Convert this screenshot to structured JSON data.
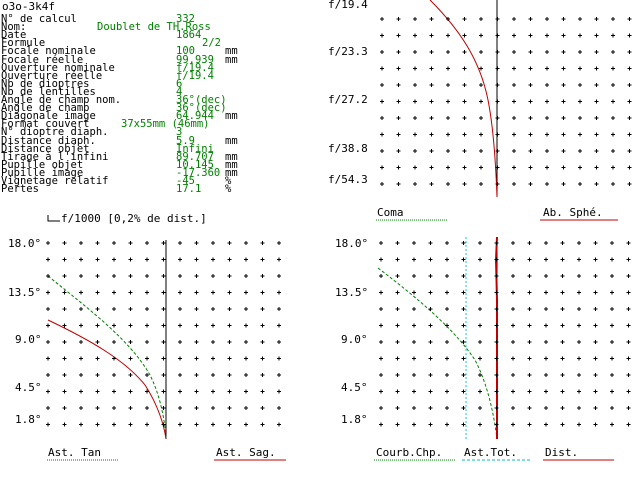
{
  "window": {
    "title": "o3o-3k4f"
  },
  "params": [
    {
      "label": "N° de calcul",
      "value": "332",
      "unit": ""
    },
    {
      "label": "Nom:",
      "value": "Doublet de TH.Ross",
      "unit": "",
      "wide": true
    },
    {
      "label": "Date",
      "value": "1864",
      "unit": ""
    },
    {
      "label": "Formule",
      "value": "2/2",
      "unit": "",
      "offset": 26
    },
    {
      "label": "Focale nominale",
      "value": "100",
      "unit": "mm"
    },
    {
      "label": "Focale réelle",
      "value": "99.939",
      "unit": "mm"
    },
    {
      "label": "Ouverture nominale",
      "value": "f/19.4",
      "unit": ""
    },
    {
      "label": "Ouverture réelle",
      "value": "f/19.4",
      "unit": ""
    },
    {
      "label": "Nb de dioptres",
      "value": "6",
      "unit": ""
    },
    {
      "label": "Nb de lentilles",
      "value": "4",
      "unit": ""
    },
    {
      "label": "Angle de champ nom.",
      "value": "36°(dec)",
      "unit": ""
    },
    {
      "label": "Angle de champ",
      "value": "36°(dec)",
      "unit": ""
    },
    {
      "label": "Diagonale image",
      "value": "64.944",
      "unit": "mm"
    },
    {
      "label": "Format couvert",
      "value": "37x55mm (46mm)",
      "unit": "",
      "mid": true
    },
    {
      "label": "N° dioptre diaph.",
      "value": "3",
      "unit": ""
    },
    {
      "label": "Distance diaph.",
      "value": "5.9",
      "unit": "mm"
    },
    {
      "label": "Distance objet",
      "value": "Infini",
      "unit": ""
    },
    {
      "label": "Tirage à l'infini",
      "value": "89.707",
      "unit": "mm"
    },
    {
      "label": "Pupille objet",
      "value": "10.145",
      "unit": "mm"
    },
    {
      "label": "Pupille image",
      "value": "-17.360",
      "unit": "mm"
    },
    {
      "label": "Vignetage relatif",
      "value": "-45",
      "unit": "%"
    },
    {
      "label": "Pertes",
      "value": "17.1",
      "unit": "%"
    }
  ],
  "scale_note": "f/1000 [0,2% de dist.]",
  "top_right": {
    "y_labels": [
      "f/19.4",
      "f/23.3",
      "f/27.2",
      "f/38.8",
      "f/54.3"
    ],
    "legend": [
      {
        "label": "Coma",
        "color": "#008000"
      },
      {
        "label": "Ab. Sphé.",
        "color": "#c00000"
      }
    ]
  },
  "bottom_left": {
    "y_labels": [
      "18.0°",
      "13.5°",
      "9.0°",
      "4.5°",
      "1.8°"
    ],
    "legend": [
      {
        "label": "Ast. Tan",
        "color": "#008000"
      },
      {
        "label": "Ast. Sag.",
        "color": "#c00000"
      }
    ]
  },
  "bottom_right": {
    "y_labels": [
      "18.0°",
      "13.5°",
      "9.0°",
      "4.5°",
      "1.8°"
    ],
    "legend": [
      {
        "label": "Courb.Chp.",
        "color": "#008000"
      },
      {
        "label": "Ast.Tot.",
        "color": "#00bcd4"
      },
      {
        "label": "Dist.",
        "color": "#c00000"
      }
    ]
  },
  "colors": {
    "red": "#c00000",
    "green": "#008000",
    "cyan": "#00d0e0"
  }
}
